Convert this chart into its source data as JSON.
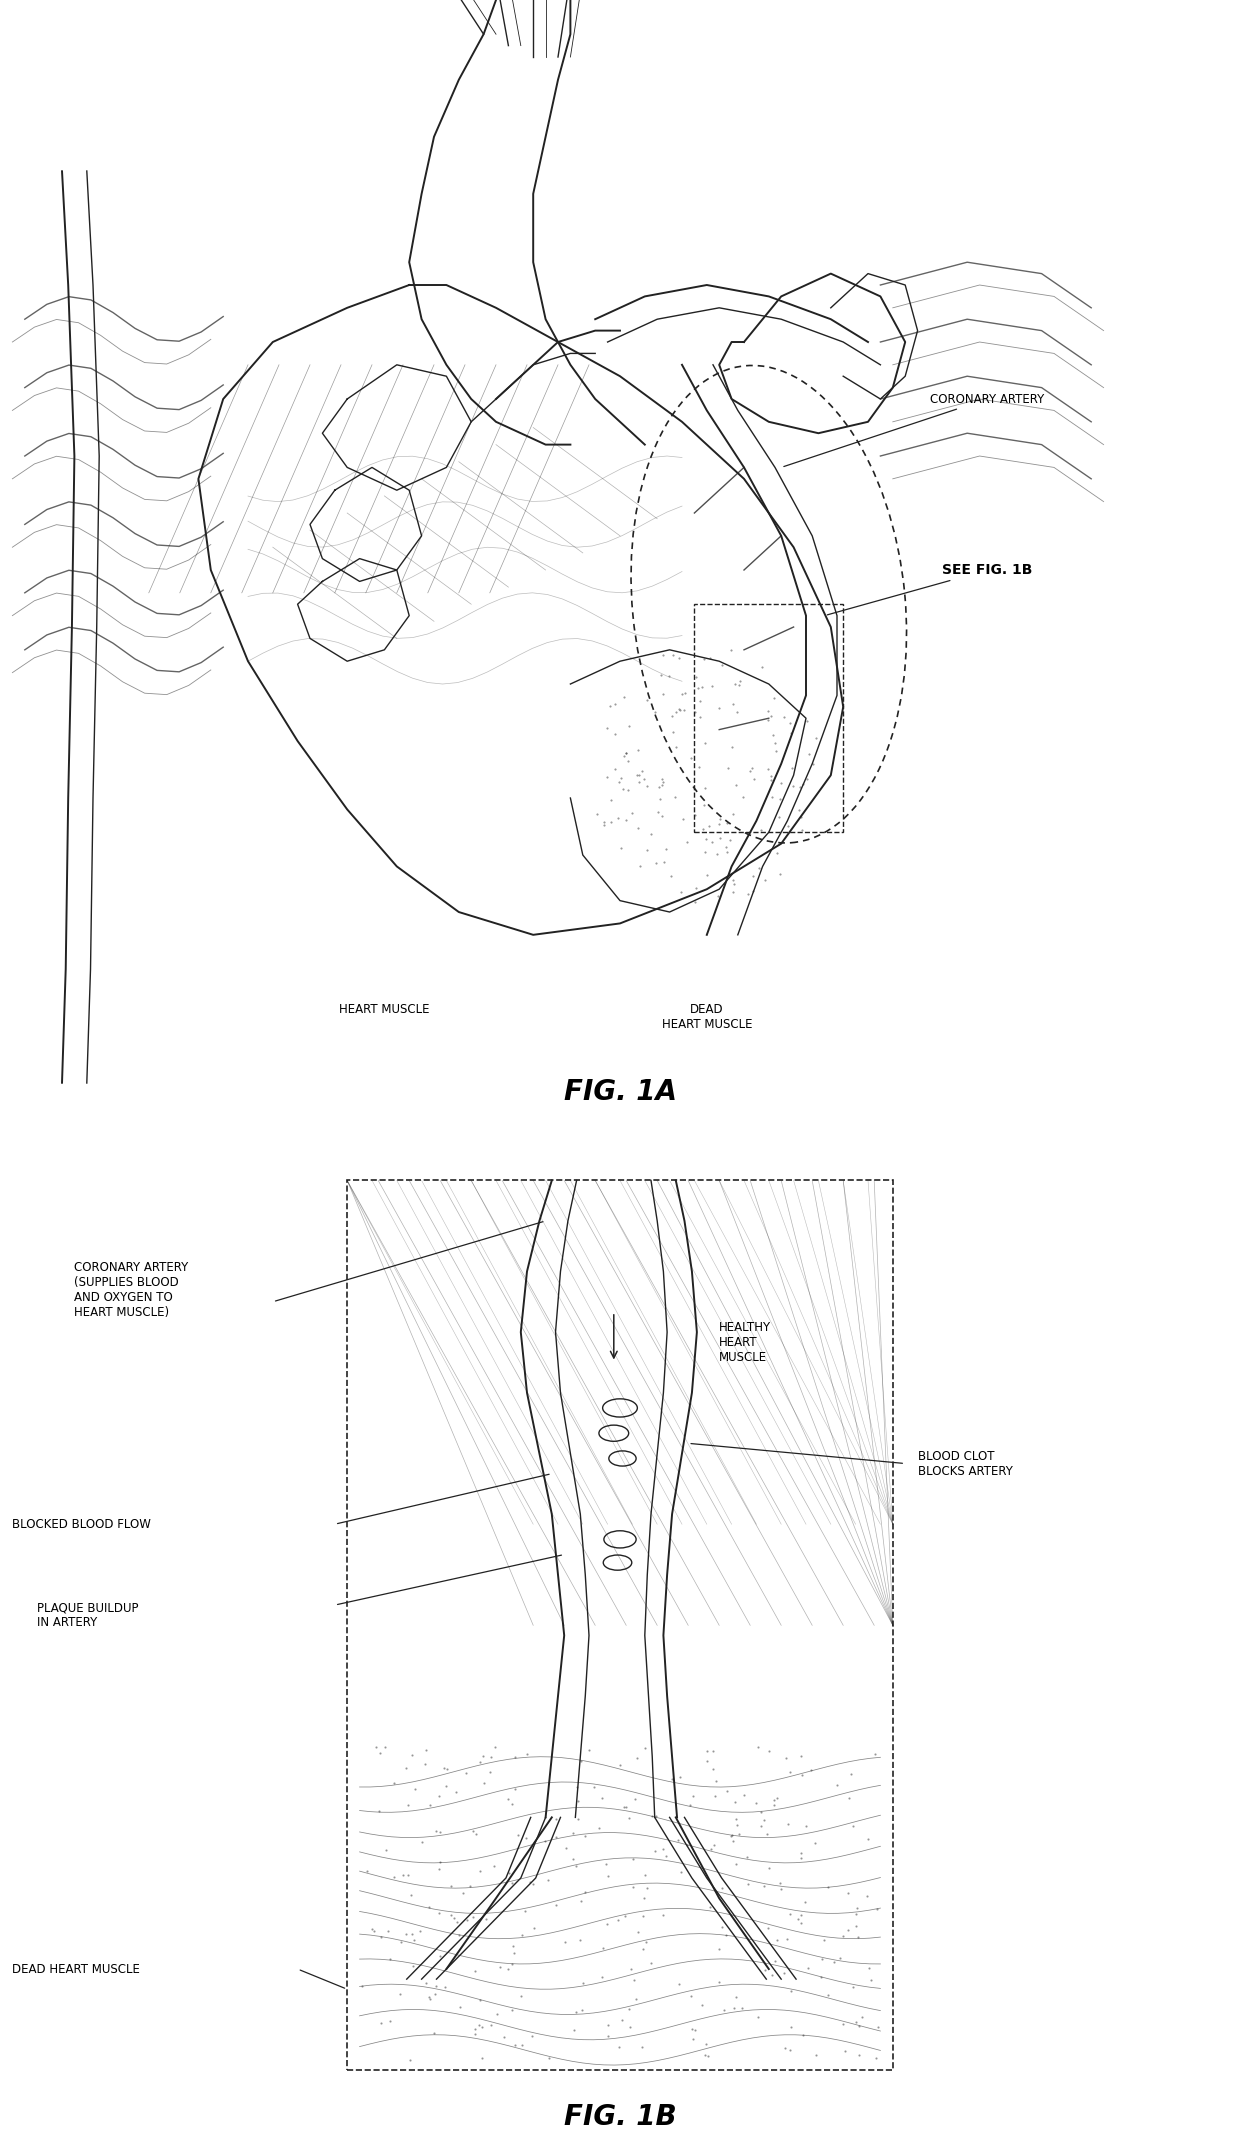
{
  "bg_color": "#ffffff",
  "line_color": "#222222",
  "fig_width": 12.4,
  "fig_height": 21.51,
  "fig1a_title": "FIG. 1A",
  "fig1b_title": "FIG. 1B",
  "label_coronary_artery_1a": "CORONARY ARTERY",
  "label_see_fig": "SEE FIG. 1B",
  "label_heart_muscle": "HEART MUSCLE",
  "label_dead_heart_muscle": "DEAD\nHEART MUSCLE",
  "label_coronary_artery_1b": "CORONARY ARTERY\n(SUPPLIES BLOOD\nAND OXYGEN TO\nHEART MUSCLE)",
  "label_healthy_heart": "HEALTHY\nHEART\nMUSCLE",
  "label_blood_clot": "BLOOD CLOT\nBLOCKS ARTERY",
  "label_blocked_flow": "BLOCKED BLOOD FLOW",
  "label_plaque": "PLAQUE BUILDUP\nIN ARTERY",
  "label_dead_muscle": "DEAD HEART MUSCLE",
  "font_size_label": 8.5,
  "font_size_title": 20
}
